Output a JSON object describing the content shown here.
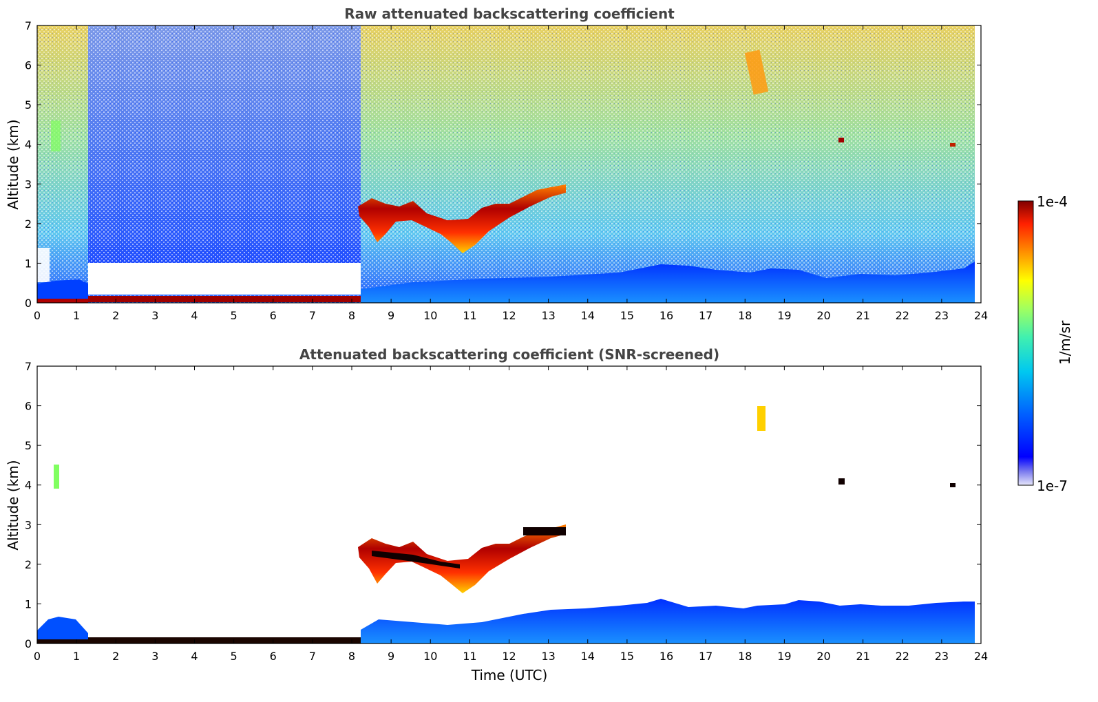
{
  "chart_data": [
    {
      "type": "heatmap",
      "title": "Raw attenuated backscattering coefficient",
      "ylabel": "Altitude (km)",
      "xlabel": "",
      "xlim": [
        0,
        24
      ],
      "ylim": [
        0,
        7
      ],
      "xticks": [
        "0",
        "1",
        "2",
        "3",
        "4",
        "5",
        "6",
        "7",
        "8",
        "9",
        "10",
        "11",
        "12",
        "13",
        "14",
        "15",
        "16",
        "17",
        "18",
        "19",
        "20",
        "21",
        "22",
        "23",
        "24"
      ],
      "yticks": [
        "0",
        "1",
        "2",
        "3",
        "4",
        "5",
        "6",
        "7"
      ],
      "features": [
        {
          "name": "near-surface layer (strong)",
          "time": [
            1.2,
            8.2
          ],
          "altitude": [
            0.0,
            0.15
          ],
          "level": "1e-4"
        },
        {
          "name": "boundary layer",
          "time": [
            8.2,
            23.8
          ],
          "altitude": [
            0.0,
            1.0
          ],
          "level": "low"
        },
        {
          "name": "cloud layer",
          "time": [
            8.2,
            13.5
          ],
          "altitude": [
            1.8,
            3.0
          ],
          "level": "1e-4"
        },
        {
          "name": "elevated features",
          "time": [
            18.0,
            18.6
          ],
          "altitude": [
            5.2,
            6.4
          ],
          "level": "moderate"
        }
      ]
    },
    {
      "type": "heatmap",
      "title": "Attenuated backscattering coefficient (SNR-screened)",
      "ylabel": "Altitude (km)",
      "xlabel": "Time (UTC)",
      "xlim": [
        0,
        24
      ],
      "ylim": [
        0,
        7
      ],
      "xticks": [
        "0",
        "1",
        "2",
        "3",
        "4",
        "5",
        "6",
        "7",
        "8",
        "9",
        "10",
        "11",
        "12",
        "13",
        "14",
        "15",
        "16",
        "17",
        "18",
        "19",
        "20",
        "21",
        "22",
        "23",
        "24"
      ],
      "yticks": [
        "0",
        "1",
        "2",
        "3",
        "4",
        "5",
        "6",
        "7"
      ],
      "features": [
        {
          "name": "cloud layer",
          "time": [
            8.2,
            13.5
          ],
          "altitude": [
            1.8,
            3.0
          ],
          "level": "1e-4"
        },
        {
          "name": "boundary layer",
          "time": [
            8.2,
            23.8
          ],
          "altitude": [
            0.0,
            1.15
          ],
          "level": "low"
        },
        {
          "name": "aerosol plume",
          "time": [
            18.4,
            18.9
          ],
          "altitude": [
            5.4,
            6.0
          ],
          "level": "moderate"
        },
        {
          "name": "small features",
          "time": [
            20.4,
            23.3
          ],
          "altitude": [
            4.0,
            4.1
          ],
          "level": "1e-4"
        }
      ]
    }
  ],
  "colorbar": {
    "label": "1/m/sr",
    "max_label": "1e-4",
    "min_label": "1e-7",
    "colors": [
      "#dcdcf6",
      "#5555f0",
      "#0000ff",
      "#0080ff",
      "#00e0e0",
      "#80ff80",
      "#ffff00",
      "#ff8000",
      "#ff0000",
      "#800000"
    ]
  }
}
